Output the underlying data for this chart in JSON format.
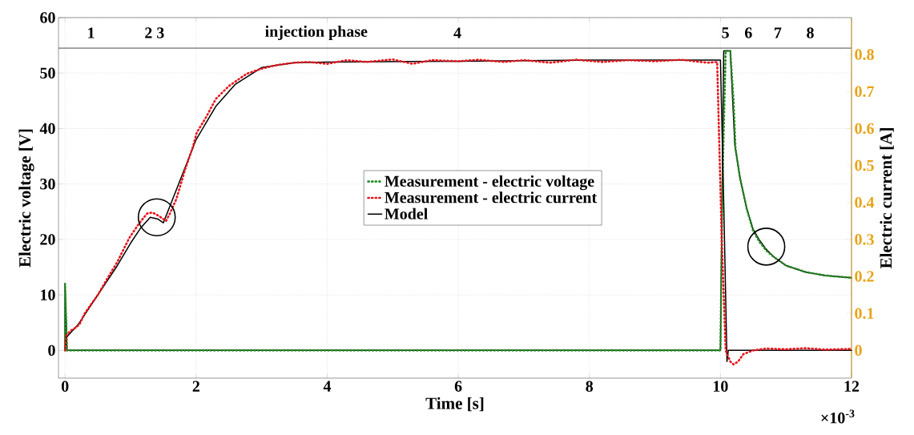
{
  "chart_data": {
    "type": "line",
    "xlabel": "Time [s]",
    "ylabel": "Electric voltage [V]",
    "y2label": "Electric current [A]",
    "xlim": [
      -0.1,
      12
    ],
    "xticks": [
      0,
      2,
      4,
      6,
      8,
      10,
      12
    ],
    "ylim": [
      -5,
      60
    ],
    "yticks": [
      0,
      10,
      20,
      30,
      40,
      50,
      60
    ],
    "y2lim": [
      -0.075,
      0.9
    ],
    "y2ticks": [
      0,
      0.1,
      0.2,
      0.3,
      0.4,
      0.5,
      0.6,
      0.7,
      0.8
    ],
    "grid": true,
    "legend": "center",
    "series": [
      {
        "name": "Measurement - electric voltage",
        "color": "#228b22",
        "line_style": "dotted",
        "axis": "y",
        "x": [
          0,
          0,
          0.03,
          1,
          2,
          3,
          4,
          5,
          6,
          7,
          8,
          9,
          10.0,
          10.03,
          10.08,
          10.15,
          10.2,
          10.23,
          10.3,
          10.4,
          10.5,
          10.6,
          10.7,
          10.82,
          11.0,
          11.31,
          11.6,
          12
        ],
        "values": [
          0,
          12,
          0,
          0,
          0,
          0,
          0,
          0,
          0,
          0,
          0,
          0,
          0,
          30,
          54,
          54,
          45,
          36.4,
          31,
          25.6,
          21.5,
          19.5,
          18,
          16.8,
          15.3,
          14.1,
          13.5,
          13.1
        ]
      },
      {
        "name": "Measurement - electric current",
        "color": "#e8141c",
        "line_style": "dotted",
        "axis": "y2",
        "x": [
          0,
          0.02,
          0.08,
          0.15,
          0.22,
          0.3,
          0.41,
          0.5,
          0.65,
          0.8,
          0.98,
          1.12,
          1.25,
          1.33,
          1.42,
          1.5,
          1.54,
          1.6,
          1.7,
          1.83,
          1.95,
          2.01,
          2.15,
          2.3,
          2.5,
          2.77,
          3.0,
          3.24,
          3.5,
          3.71,
          4.0,
          4.3,
          4.6,
          5.0,
          5.3,
          5.6,
          6.0,
          6.3,
          6.7,
          7.0,
          7.4,
          7.8,
          8.2,
          8.6,
          9.0,
          9.4,
          9.8,
          9.95,
          10.02,
          10.08,
          10.15,
          10.2,
          10.27,
          10.35,
          10.5,
          10.7,
          11.0,
          11.3,
          11.6,
          12
        ],
        "values": [
          0,
          0.04,
          0.053,
          0.06,
          0.07,
          0.1,
          0.128,
          0.15,
          0.196,
          0.24,
          0.304,
          0.341,
          0.37,
          0.373,
          0.365,
          0.355,
          0.35,
          0.37,
          0.41,
          0.488,
          0.55,
          0.589,
          0.63,
          0.68,
          0.715,
          0.748,
          0.762,
          0.772,
          0.778,
          0.78,
          0.775,
          0.785,
          0.78,
          0.787,
          0.775,
          0.785,
          0.782,
          0.786,
          0.78,
          0.785,
          0.778,
          0.786,
          0.78,
          0.785,
          0.782,
          0.786,
          0.778,
          0.78,
          0.3,
          0.0,
          -0.03,
          -0.038,
          -0.03,
          -0.01,
          0.0,
          0.005,
          0.003,
          0.006,
          0.002,
          0.004
        ]
      },
      {
        "name": "Model",
        "color": "#000000",
        "line_style": "solid",
        "axis": "y",
        "x": [
          0,
          0,
          0.03,
          10.0,
          10.05,
          10.15,
          10.22,
          10.3,
          10.4,
          10.5,
          10.6,
          10.7,
          10.82,
          11,
          11.3,
          11.6,
          12
        ],
        "values": [
          0,
          12,
          0,
          0,
          54,
          54,
          37,
          31,
          25.6,
          21.8,
          19.8,
          18.2,
          16.8,
          15.3,
          14.1,
          13.5,
          13.1
        ]
      },
      {
        "color": "#000000",
        "line_style": "solid",
        "axis": "y2",
        "x": [
          0,
          0.02,
          0.2,
          0.5,
          0.8,
          1.0,
          1.15,
          1.3,
          1.42,
          1.5,
          1.6,
          1.8,
          2.0,
          2.3,
          2.6,
          3.0,
          3.5,
          4.0,
          6,
          8,
          10.0,
          10.05,
          10.1,
          10.12,
          12
        ],
        "values": [
          0,
          0.035,
          0.07,
          0.15,
          0.23,
          0.29,
          0.33,
          0.36,
          0.355,
          0.345,
          0.39,
          0.48,
          0.57,
          0.66,
          0.72,
          0.765,
          0.778,
          0.78,
          0.782,
          0.785,
          0.785,
          0.4,
          -0.03,
          0,
          0
        ]
      }
    ],
    "ref_lines": [
      {
        "axis": "y",
        "value": 54.5
      }
    ],
    "annotations": [
      "1",
      "2 3",
      "injection phase",
      "4",
      "5",
      "6",
      "7",
      "8",
      "×10$^{-3}$"
    ]
  }
}
